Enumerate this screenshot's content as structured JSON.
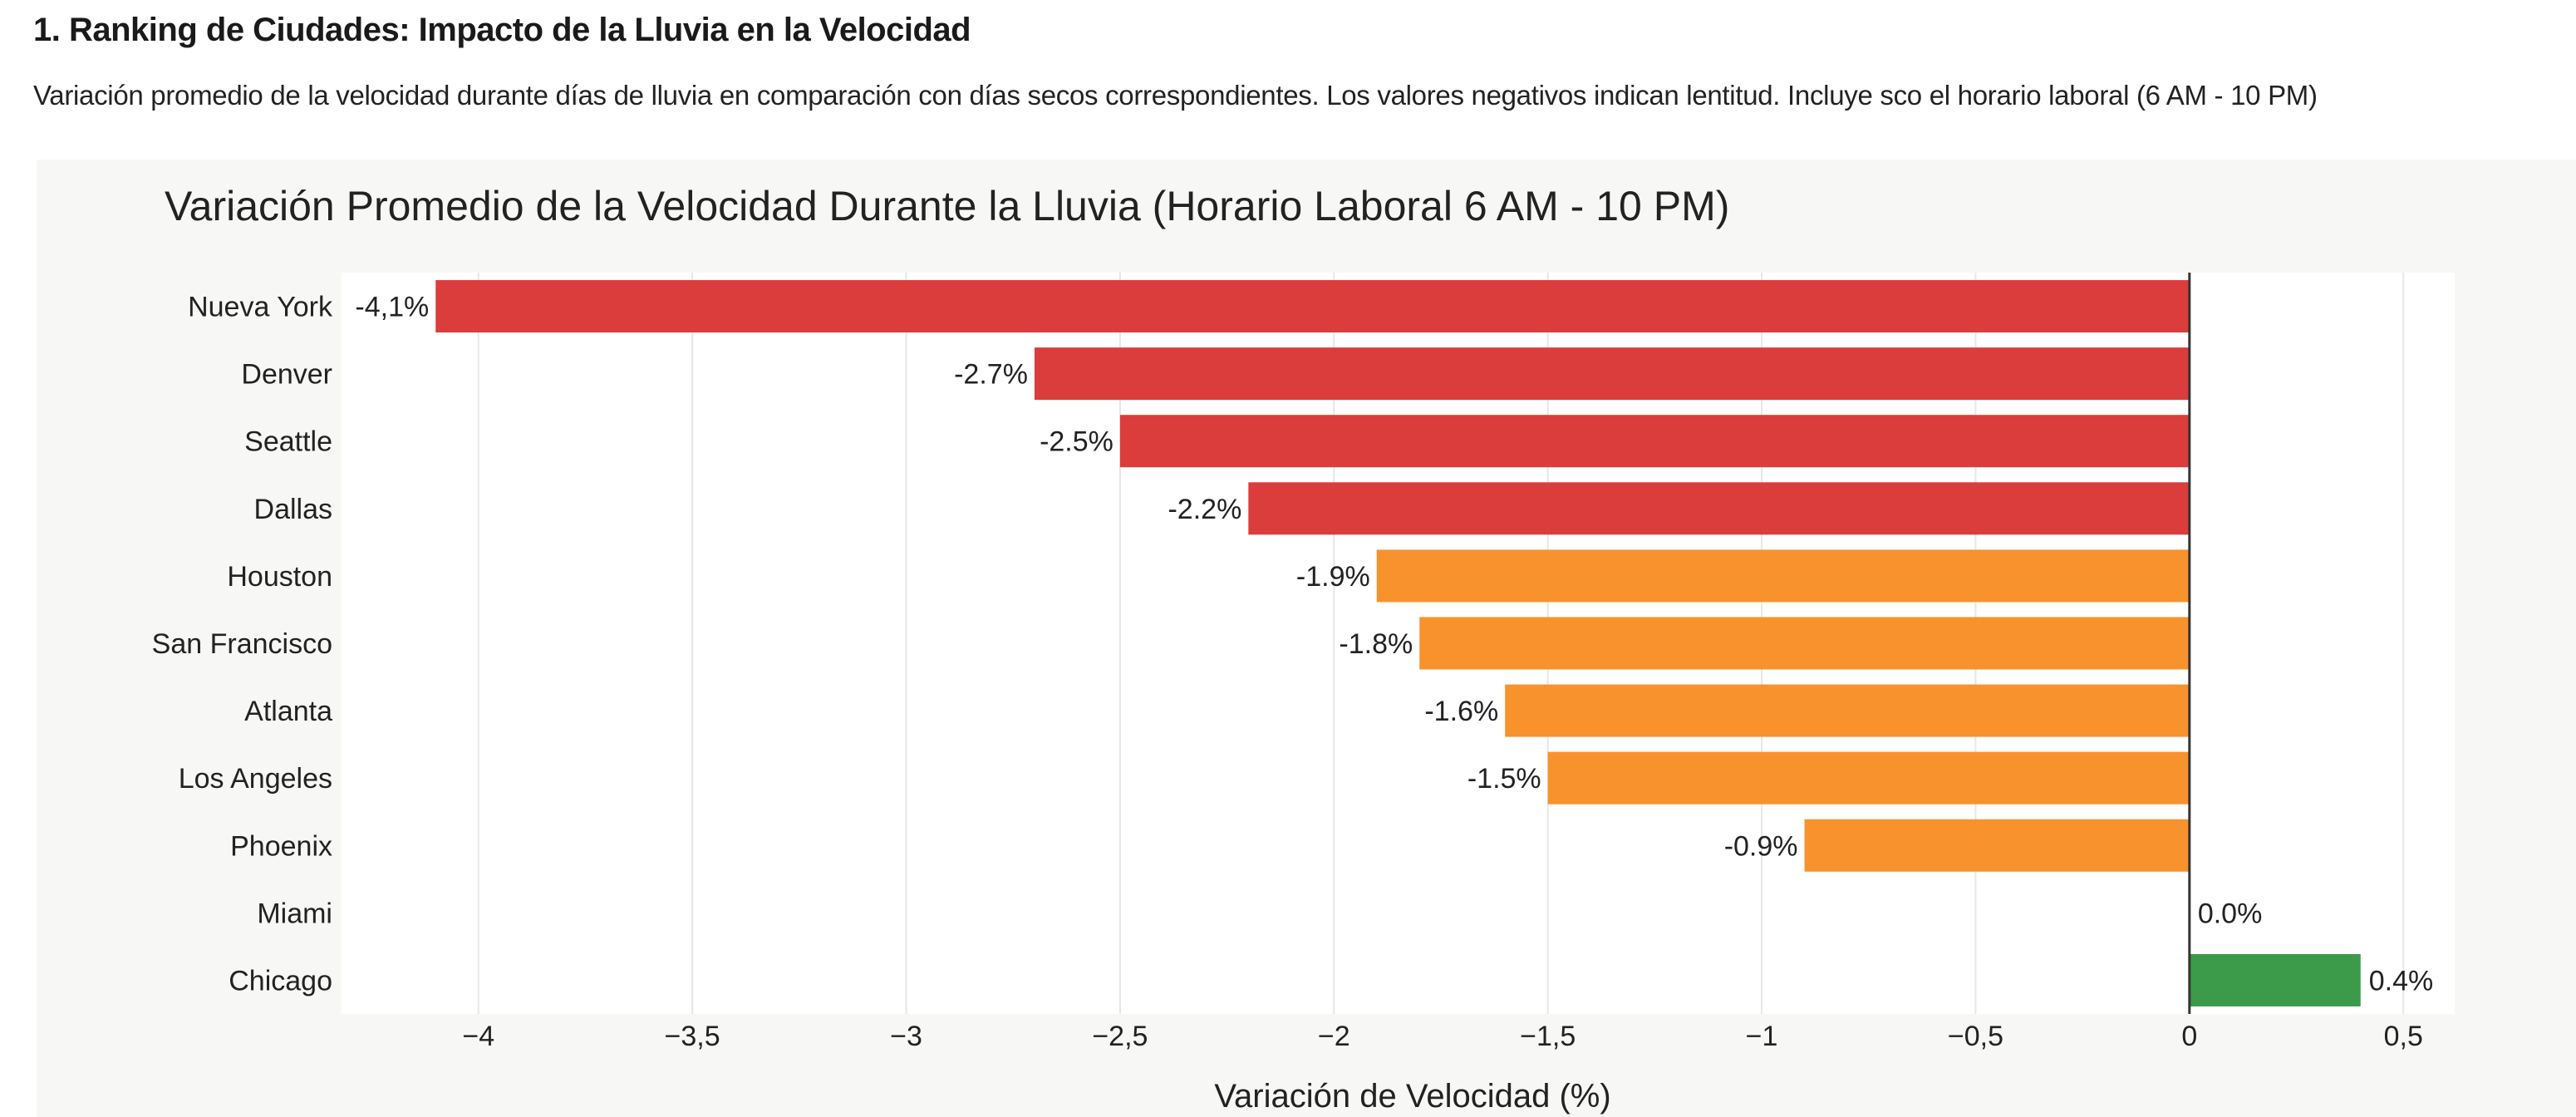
{
  "header": {
    "title": "1. Ranking de Ciudades: Impacto de la Lluvia en la Velocidad",
    "description": "Variación promedio de la velocidad durante días de lluvia en comparación con días secos correspondientes. Los valores negativos indican lentitud. Incluye sco el horario laboral (6 AM - 10 PM)"
  },
  "chart_data": {
    "type": "bar",
    "orientation": "horizontal",
    "title": "Variación Promedio de la Velocidad Durante la Lluvia (Horario Laboral 6 AM - 10 PM)",
    "xlabel": "Variación de Velocidad (%)",
    "ylabel": "",
    "xlim": [
      -4.32,
      0.62
    ],
    "grid": true,
    "categories": [
      "Nueva York",
      "Denver",
      "Seattle",
      "Dallas",
      "Houston",
      "San Francisco",
      "Atlanta",
      "Los Angeles",
      "Phoenix",
      "Miami",
      "Chicago"
    ],
    "values": [
      -4.1,
      -2.7,
      -2.5,
      -2.2,
      -1.9,
      -1.8,
      -1.6,
      -1.5,
      -0.9,
      0.0,
      0.4
    ],
    "data_labels": [
      "-4,1%",
      "-2.7%",
      "-2.5%",
      "-2.2%",
      "-1.9%",
      "-1.8%",
      "-1.6%",
      "-1.5%",
      "-0.9%",
      "0.0%",
      "0.4%"
    ],
    "bar_colors": [
      "#da3d3b",
      "#da3d3b",
      "#da3d3b",
      "#da3d3b",
      "#f7922d",
      "#f7922d",
      "#f7922d",
      "#f7922d",
      "#f7922d",
      "#f7922d",
      "#3c9a4b"
    ],
    "x_ticks": [
      -4,
      -3.5,
      -3,
      -2.5,
      -2,
      -1.5,
      -1,
      -0.5,
      0,
      0.5
    ],
    "x_tick_labels": [
      "−4",
      "−3,5",
      "−3",
      "−2,5",
      "−2",
      "−1,5",
      "−1",
      "−0,5",
      "0",
      "0,5"
    ]
  }
}
